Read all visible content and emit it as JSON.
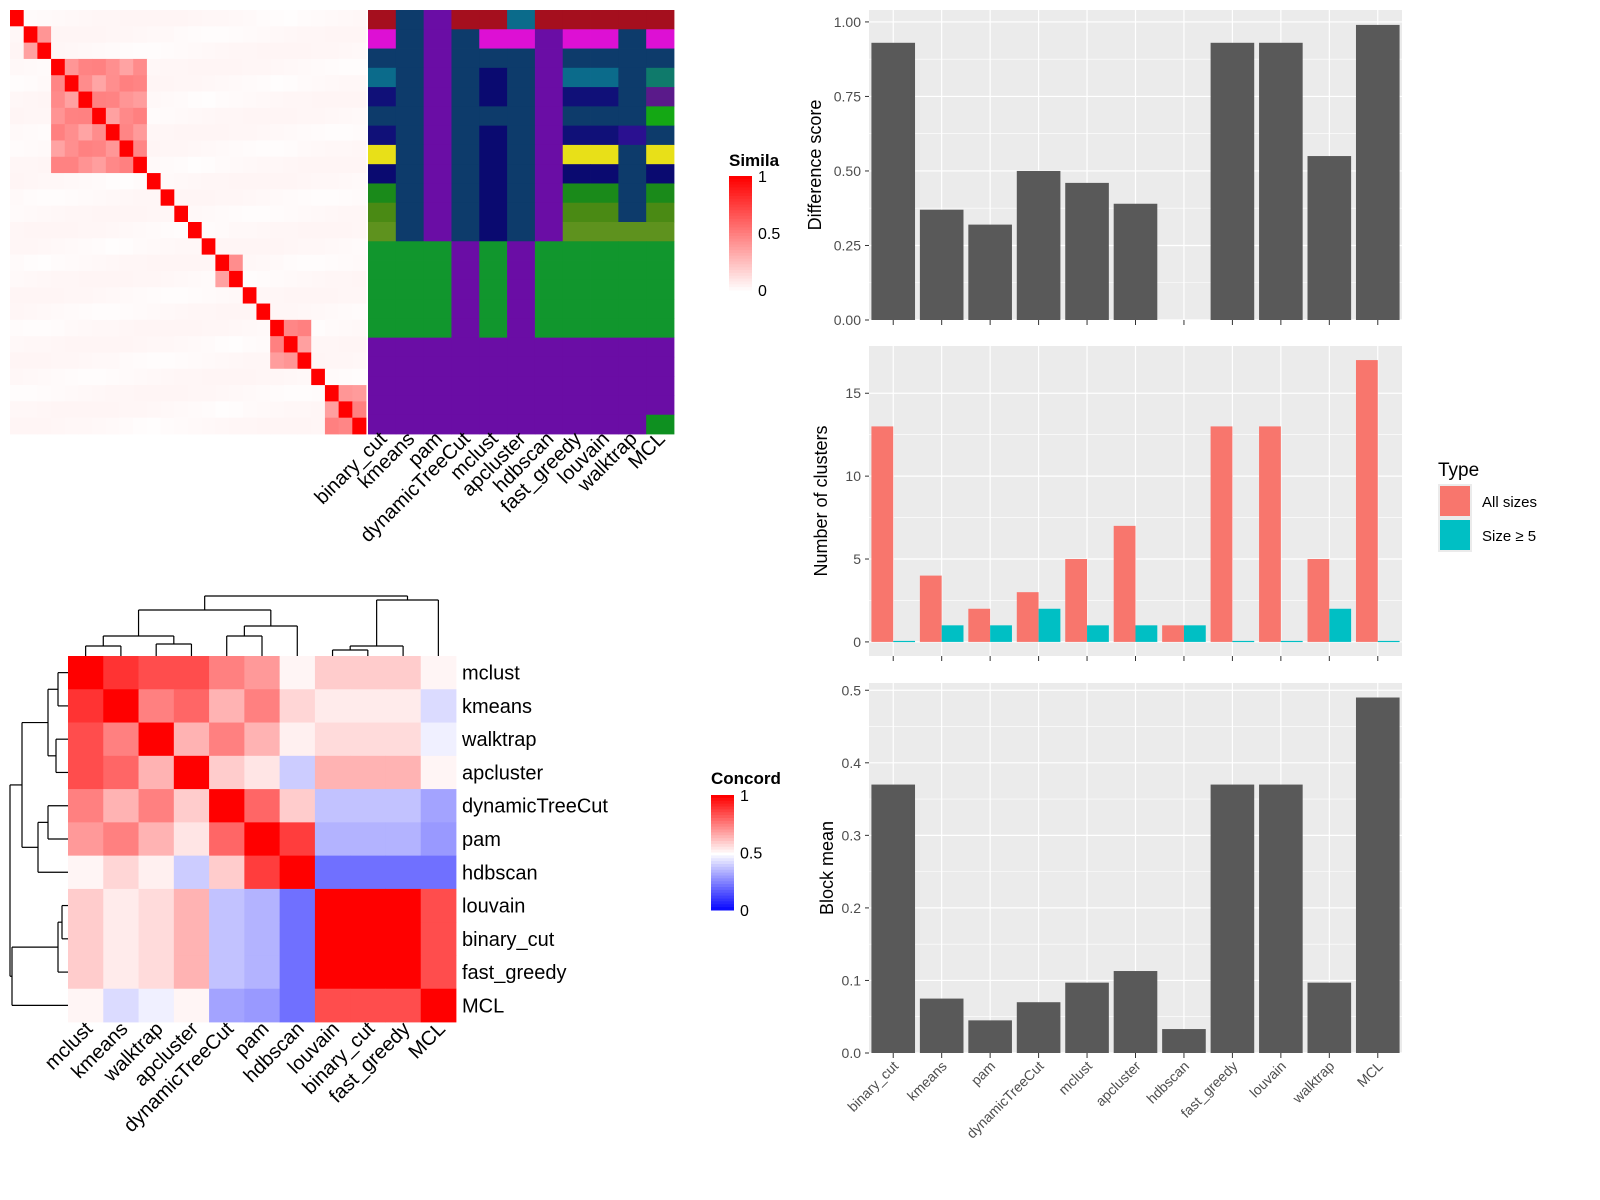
{
  "colors": {
    "heat_red": "#ff0000",
    "heat_white": "#ffffff",
    "heat_blue": "#0000ff",
    "bar_dark": "#595959",
    "all_sizes": "#f8766d",
    "size_ge5": "#00bfc4",
    "panel_bg": "#ebebeb",
    "grid": "#ffffff"
  },
  "chart_data": [
    {
      "type": "heatmap",
      "name": "similarity-heatmap",
      "legend_title": "Simila",
      "legend_ticks": [
        "1",
        "0.5",
        "0"
      ],
      "legend_range": [
        0,
        1
      ],
      "size": 26,
      "blocks": [
        [
          0,
          0
        ],
        [
          1,
          2
        ],
        [
          3,
          9
        ],
        [
          10,
          10
        ],
        [
          11,
          11
        ],
        [
          12,
          12
        ],
        [
          13,
          13
        ],
        [
          14,
          14
        ],
        [
          15,
          16
        ],
        [
          17,
          17
        ],
        [
          18,
          18
        ],
        [
          19,
          21
        ],
        [
          22,
          22
        ],
        [
          23,
          25
        ]
      ],
      "diagonal_value": 1.0,
      "in_block_value": 0.35,
      "off_block_value": 0.03
    },
    {
      "type": "heatmap",
      "name": "cluster-assignment-heatmap",
      "columns": [
        "binary_cut",
        "kmeans",
        "pam",
        "dynamicTreeCut",
        "mclust",
        "apcluster",
        "hdbscan",
        "fast_greedy",
        "louvain",
        "walktrap",
        "MCL"
      ],
      "palette": {
        "a": "#a50f1e",
        "b": "#0d3b6b",
        "c": "#6a0da5",
        "d": "#dd10d4",
        "e": "#0b6b8b",
        "f": "#101078",
        "g": "#0a0a70",
        "h": "#e8e018",
        "i": "#1a8a1a",
        "j": "#4a8a14",
        "k": "#5e921e",
        "l": "#11962d",
        "m": "#0f7a6b",
        "n": "#5a1a8a",
        "o": "#14a814",
        "p": "#2a1090",
        "q": "#0e9020"
      },
      "rows": [
        "abcaaeaaaaa",
        "dbcbddcddbd",
        "bbcbbbcbbbb",
        "ebcbgbceebm",
        "fbcbgbcffbn",
        "bbcbbbcbbbo",
        "fbcbgbcffpb",
        "hbcbgbchhbh",
        "gbcbgbcggbg",
        "ibcbgbciibi",
        "jbcbgbcjjbj",
        "kbcbgbckkkk",
        "lllclclllll",
        "lllclclllll",
        "lllclclllll",
        "lllclclllll",
        "lllclclllll",
        "ccccccccccc",
        "ccccccccccc",
        "ccccccccccc",
        "ccccccccccc",
        "ccccccccccq"
      ]
    },
    {
      "type": "heatmap",
      "name": "concordance-heatmap",
      "legend_title": "Concord",
      "legend_ticks": [
        "1",
        "0.5",
        "0"
      ],
      "legend_range": [
        0,
        1
      ],
      "labels": [
        "mclust",
        "kmeans",
        "walktrap",
        "apcluster",
        "dynamicTreeCut",
        "pam",
        "hdbscan",
        "louvain",
        "binary_cut",
        "fast_greedy",
        "MCL"
      ],
      "values": [
        [
          1.0,
          0.9,
          0.85,
          0.85,
          0.75,
          0.7,
          0.52,
          0.6,
          0.6,
          0.6,
          0.52
        ],
        [
          0.9,
          1.0,
          0.75,
          0.8,
          0.65,
          0.75,
          0.58,
          0.54,
          0.54,
          0.54,
          0.43
        ],
        [
          0.85,
          0.75,
          1.0,
          0.65,
          0.75,
          0.65,
          0.53,
          0.57,
          0.57,
          0.57,
          0.47
        ],
        [
          0.85,
          0.8,
          0.65,
          1.0,
          0.6,
          0.55,
          0.4,
          0.65,
          0.65,
          0.65,
          0.52
        ],
        [
          0.75,
          0.65,
          0.75,
          0.6,
          1.0,
          0.8,
          0.6,
          0.38,
          0.38,
          0.38,
          0.32
        ],
        [
          0.7,
          0.75,
          0.65,
          0.55,
          0.8,
          1.0,
          0.88,
          0.35,
          0.35,
          0.35,
          0.3
        ],
        [
          0.52,
          0.58,
          0.53,
          0.4,
          0.6,
          0.88,
          1.0,
          0.22,
          0.22,
          0.22,
          0.22
        ],
        [
          0.6,
          0.54,
          0.57,
          0.65,
          0.38,
          0.35,
          0.22,
          1.0,
          1.0,
          1.0,
          0.85
        ],
        [
          0.6,
          0.54,
          0.57,
          0.65,
          0.38,
          0.35,
          0.22,
          1.0,
          1.0,
          1.0,
          0.85
        ],
        [
          0.6,
          0.54,
          0.57,
          0.65,
          0.38,
          0.35,
          0.22,
          1.0,
          1.0,
          1.0,
          0.85
        ],
        [
          0.52,
          0.43,
          0.47,
          0.52,
          0.32,
          0.3,
          0.22,
          0.85,
          0.85,
          0.85,
          1.0
        ]
      ]
    },
    {
      "type": "bar",
      "name": "difference-score",
      "ylabel": "Difference score",
      "categories": [
        "binary_cut",
        "kmeans",
        "pam",
        "dynamicTreeCut",
        "mclust",
        "apcluster",
        "hdbscan",
        "fast_greedy",
        "louvain",
        "walktrap",
        "MCL"
      ],
      "values": [
        0.93,
        0.37,
        0.32,
        0.5,
        0.46,
        0.39,
        0.0,
        0.93,
        0.93,
        0.55,
        0.99
      ],
      "ylim": [
        0,
        1.04
      ],
      "yticks": [
        "0.00",
        "0.25",
        "0.50",
        "0.75",
        "1.00"
      ],
      "ytick_values": [
        0,
        0.25,
        0.5,
        0.75,
        1.0
      ],
      "grid": true
    },
    {
      "type": "bar",
      "name": "number-of-clusters",
      "ylabel": "Number of clusters",
      "categories": [
        "binary_cut",
        "kmeans",
        "pam",
        "dynamicTreeCut",
        "mclust",
        "apcluster",
        "hdbscan",
        "fast_greedy",
        "louvain",
        "walktrap",
        "MCL"
      ],
      "series": [
        {
          "name": "All sizes",
          "values": [
            13,
            4,
            2,
            3,
            5,
            7,
            1,
            13,
            13,
            5,
            17
          ]
        },
        {
          "name": "Size ≥ 5",
          "values": [
            0,
            1,
            1,
            2,
            1,
            1,
            1,
            0,
            0,
            2,
            0
          ]
        }
      ],
      "ylim": [
        -0.85,
        17.85
      ],
      "yticks": [
        "0",
        "5",
        "10",
        "15"
      ],
      "ytick_values": [
        0,
        5,
        10,
        15
      ],
      "legend_title": "Type",
      "legend_position": "right",
      "grid": true
    },
    {
      "type": "bar",
      "name": "block-mean",
      "ylabel": "Block mean",
      "categories": [
        "binary_cut",
        "kmeans",
        "pam",
        "dynamicTreeCut",
        "mclust",
        "apcluster",
        "hdbscan",
        "fast_greedy",
        "louvain",
        "walktrap",
        "MCL"
      ],
      "values": [
        0.37,
        0.075,
        0.045,
        0.07,
        0.097,
        0.113,
        0.033,
        0.37,
        0.37,
        0.097,
        0.49
      ],
      "ylim": [
        0,
        0.51
      ],
      "yticks": [
        "0.0",
        "0.1",
        "0.2",
        "0.3",
        "0.4",
        "0.5"
      ],
      "ytick_values": [
        0,
        0.1,
        0.2,
        0.3,
        0.4,
        0.5
      ],
      "grid": true
    }
  ]
}
